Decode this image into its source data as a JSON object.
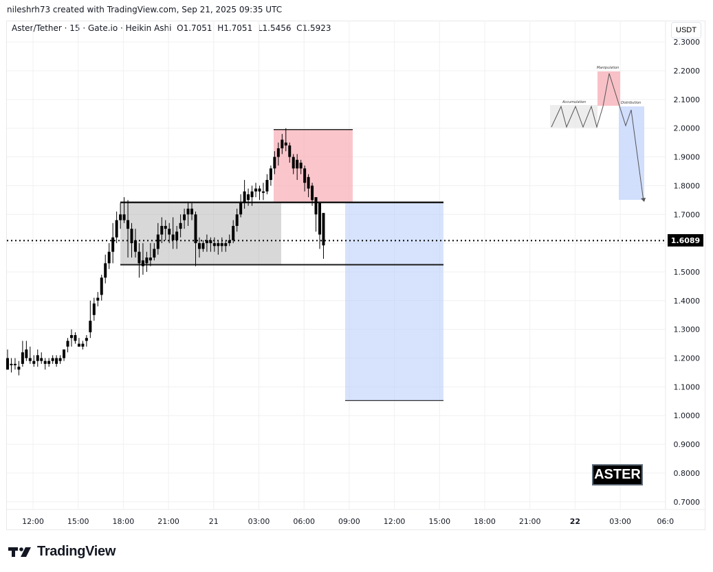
{
  "credit": "nileshrh73 created with TradingView.com, Sep 21, 2025 09:35 UTC",
  "legend": {
    "symbol": "Aster/Tether",
    "interval": "15",
    "exchange": "Gate.io",
    "chart_type": "Heikin Ashi",
    "open": "O1.7051",
    "high": "H1.7051",
    "low": "L1.5456",
    "close": "C1.5923",
    "text": "Aster/Tether · 15 · Gate.io · Heikin Ashi  O1.7051  H1.7051  L1.5456  C1.5923"
  },
  "currency_button": "USDT",
  "current_price_tag": "1.6089",
  "watermark_label": "ASTER",
  "logo_text": "TradingView",
  "inset_diagram": {
    "labels": [
      "Accumulation",
      "Manipulation",
      "Distribution"
    ]
  },
  "colors": {
    "candle": "#000000",
    "accumulation_box": "#c8c8c8",
    "manipulation_box": "#f7b6bd",
    "distribution_box": "#c9d8fb",
    "grid": "#f0f0f0"
  },
  "chart_data": {
    "type": "candlestick",
    "title": "Aster/Tether · 15 · Gate.io · Heikin Ashi",
    "xlabel": "",
    "ylabel": "USDT",
    "ylim": [
      0.68,
      2.31
    ],
    "price_ticks": [
      "2.3000",
      "2.2000",
      "2.1000",
      "2.0000",
      "1.9000",
      "1.8000",
      "1.7000",
      "1.6000",
      "1.5000",
      "1.4000",
      "1.3000",
      "1.2000",
      "1.1000",
      "1.0000",
      "0.9000",
      "0.8000",
      "0.7000"
    ],
    "time_ticks": [
      "12:00",
      "15:00",
      "18:00",
      "21:00",
      "21",
      "03:00",
      "06:00",
      "09:00",
      "12:00",
      "15:00",
      "18:00",
      "21:00",
      "22",
      "03:00",
      "06:0"
    ],
    "current_price": 1.6089,
    "last_ohlc": {
      "open": 1.7051,
      "high": 1.7051,
      "low": 1.5456,
      "close": 1.5923
    },
    "zones": [
      {
        "name": "Accumulation",
        "top": 1.7417,
        "bottom": 1.5249,
        "color": "#c8c8c8"
      },
      {
        "name": "Manipulation",
        "top": 1.9951,
        "bottom": 1.7417,
        "color": "#f7b6bd"
      },
      {
        "name": "Distribution",
        "top": 1.7417,
        "bottom": 1.0522,
        "color": "#c9d8fb"
      }
    ],
    "horizontal_lines": [
      1.7417,
      1.5249,
      1.0522
    ],
    "candles": [
      {
        "o": 1.2,
        "h": 1.23,
        "l": 1.16,
        "c": 1.16
      },
      {
        "o": 1.18,
        "h": 1.2,
        "l": 1.15,
        "c": 1.18
      },
      {
        "o": 1.18,
        "h": 1.2,
        "l": 1.16,
        "c": 1.18
      },
      {
        "o": 1.17,
        "h": 1.19,
        "l": 1.14,
        "c": 1.16
      },
      {
        "o": 1.18,
        "h": 1.26,
        "l": 1.17,
        "c": 1.22
      },
      {
        "o": 1.23,
        "h": 1.26,
        "l": 1.19,
        "c": 1.2
      },
      {
        "o": 1.2,
        "h": 1.24,
        "l": 1.18,
        "c": 1.19
      },
      {
        "o": 1.18,
        "h": 1.21,
        "l": 1.17,
        "c": 1.19
      },
      {
        "o": 1.19,
        "h": 1.23,
        "l": 1.17,
        "c": 1.21
      },
      {
        "o": 1.2,
        "h": 1.22,
        "l": 1.18,
        "c": 1.19
      },
      {
        "o": 1.19,
        "h": 1.2,
        "l": 1.16,
        "c": 1.18
      },
      {
        "o": 1.18,
        "h": 1.2,
        "l": 1.17,
        "c": 1.19
      },
      {
        "o": 1.19,
        "h": 1.21,
        "l": 1.18,
        "c": 1.2
      },
      {
        "o": 1.2,
        "h": 1.21,
        "l": 1.17,
        "c": 1.18
      },
      {
        "o": 1.19,
        "h": 1.21,
        "l": 1.18,
        "c": 1.2
      },
      {
        "o": 1.2,
        "h": 1.23,
        "l": 1.19,
        "c": 1.23
      },
      {
        "o": 1.24,
        "h": 1.27,
        "l": 1.22,
        "c": 1.26
      },
      {
        "o": 1.27,
        "h": 1.3,
        "l": 1.24,
        "c": 1.28
      },
      {
        "o": 1.28,
        "h": 1.29,
        "l": 1.25,
        "c": 1.26
      },
      {
        "o": 1.25,
        "h": 1.27,
        "l": 1.24,
        "c": 1.24
      },
      {
        "o": 1.24,
        "h": 1.26,
        "l": 1.23,
        "c": 1.25
      },
      {
        "o": 1.26,
        "h": 1.28,
        "l": 1.24,
        "c": 1.27
      },
      {
        "o": 1.29,
        "h": 1.4,
        "l": 1.27,
        "c": 1.33
      },
      {
        "o": 1.35,
        "h": 1.41,
        "l": 1.33,
        "c": 1.39
      },
      {
        "o": 1.4,
        "h": 1.43,
        "l": 1.38,
        "c": 1.41
      },
      {
        "o": 1.42,
        "h": 1.49,
        "l": 1.4,
        "c": 1.48
      },
      {
        "o": 1.48,
        "h": 1.56,
        "l": 1.46,
        "c": 1.53
      },
      {
        "o": 1.53,
        "h": 1.6,
        "l": 1.51,
        "c": 1.57
      },
      {
        "o": 1.57,
        "h": 1.67,
        "l": 1.53,
        "c": 1.62
      },
      {
        "o": 1.62,
        "h": 1.71,
        "l": 1.6,
        "c": 1.68
      },
      {
        "o": 1.68,
        "h": 1.74,
        "l": 1.65,
        "c": 1.7
      },
      {
        "o": 1.7,
        "h": 1.76,
        "l": 1.67,
        "c": 1.68
      },
      {
        "o": 1.68,
        "h": 1.75,
        "l": 1.55,
        "c": 1.65
      },
      {
        "o": 1.65,
        "h": 1.67,
        "l": 1.55,
        "c": 1.6
      },
      {
        "o": 1.61,
        "h": 1.65,
        "l": 1.55,
        "c": 1.57
      },
      {
        "o": 1.57,
        "h": 1.6,
        "l": 1.48,
        "c": 1.53
      },
      {
        "o": 1.54,
        "h": 1.6,
        "l": 1.49,
        "c": 1.52
      },
      {
        "o": 1.53,
        "h": 1.57,
        "l": 1.5,
        "c": 1.55
      },
      {
        "o": 1.55,
        "h": 1.6,
        "l": 1.52,
        "c": 1.54
      },
      {
        "o": 1.55,
        "h": 1.6,
        "l": 1.54,
        "c": 1.58
      },
      {
        "o": 1.58,
        "h": 1.67,
        "l": 1.56,
        "c": 1.63
      },
      {
        "o": 1.63,
        "h": 1.69,
        "l": 1.6,
        "c": 1.66
      },
      {
        "o": 1.66,
        "h": 1.68,
        "l": 1.61,
        "c": 1.65
      },
      {
        "o": 1.65,
        "h": 1.67,
        "l": 1.6,
        "c": 1.63
      },
      {
        "o": 1.63,
        "h": 1.69,
        "l": 1.58,
        "c": 1.61
      },
      {
        "o": 1.61,
        "h": 1.66,
        "l": 1.58,
        "c": 1.64
      },
      {
        "o": 1.65,
        "h": 1.7,
        "l": 1.62,
        "c": 1.67
      },
      {
        "o": 1.68,
        "h": 1.72,
        "l": 1.65,
        "c": 1.7
      },
      {
        "o": 1.7,
        "h": 1.74,
        "l": 1.66,
        "c": 1.72
      },
      {
        "o": 1.72,
        "h": 1.74,
        "l": 1.68,
        "c": 1.7
      },
      {
        "o": 1.7,
        "h": 1.71,
        "l": 1.52,
        "c": 1.6
      },
      {
        "o": 1.6,
        "h": 1.62,
        "l": 1.55,
        "c": 1.58
      },
      {
        "o": 1.58,
        "h": 1.61,
        "l": 1.57,
        "c": 1.6
      },
      {
        "o": 1.6,
        "h": 1.63,
        "l": 1.57,
        "c": 1.61
      },
      {
        "o": 1.61,
        "h": 1.62,
        "l": 1.57,
        "c": 1.6
      },
      {
        "o": 1.6,
        "h": 1.62,
        "l": 1.57,
        "c": 1.59
      },
      {
        "o": 1.59,
        "h": 1.61,
        "l": 1.56,
        "c": 1.6
      },
      {
        "o": 1.6,
        "h": 1.62,
        "l": 1.57,
        "c": 1.59
      },
      {
        "o": 1.59,
        "h": 1.61,
        "l": 1.57,
        "c": 1.6
      },
      {
        "o": 1.6,
        "h": 1.63,
        "l": 1.59,
        "c": 1.61
      },
      {
        "o": 1.61,
        "h": 1.68,
        "l": 1.6,
        "c": 1.66
      },
      {
        "o": 1.66,
        "h": 1.72,
        "l": 1.64,
        "c": 1.7
      },
      {
        "o": 1.7,
        "h": 1.77,
        "l": 1.69,
        "c": 1.74
      },
      {
        "o": 1.74,
        "h": 1.82,
        "l": 1.72,
        "c": 1.78
      },
      {
        "o": 1.75,
        "h": 1.79,
        "l": 1.73,
        "c": 1.77
      },
      {
        "o": 1.76,
        "h": 1.8,
        "l": 1.73,
        "c": 1.78
      },
      {
        "o": 1.78,
        "h": 1.81,
        "l": 1.76,
        "c": 1.79
      },
      {
        "o": 1.79,
        "h": 1.8,
        "l": 1.75,
        "c": 1.78
      },
      {
        "o": 1.78,
        "h": 1.81,
        "l": 1.75,
        "c": 1.78
      },
      {
        "o": 1.78,
        "h": 1.84,
        "l": 1.77,
        "c": 1.82
      },
      {
        "o": 1.82,
        "h": 1.87,
        "l": 1.8,
        "c": 1.86
      },
      {
        "o": 1.86,
        "h": 1.92,
        "l": 1.84,
        "c": 1.9
      },
      {
        "o": 1.9,
        "h": 1.95,
        "l": 1.87,
        "c": 1.93
      },
      {
        "o": 1.93,
        "h": 1.98,
        "l": 1.91,
        "c": 1.96
      },
      {
        "o": 1.94,
        "h": 2.0,
        "l": 1.92,
        "c": 1.95
      },
      {
        "o": 1.94,
        "h": 1.95,
        "l": 1.88,
        "c": 1.9
      },
      {
        "o": 1.9,
        "h": 1.91,
        "l": 1.84,
        "c": 1.86
      },
      {
        "o": 1.89,
        "h": 1.91,
        "l": 1.82,
        "c": 1.86
      },
      {
        "o": 1.88,
        "h": 1.89,
        "l": 1.84,
        "c": 1.86
      },
      {
        "o": 1.86,
        "h": 1.87,
        "l": 1.78,
        "c": 1.81
      },
      {
        "o": 1.83,
        "h": 1.84,
        "l": 1.76,
        "c": 1.79
      },
      {
        "o": 1.8,
        "h": 1.81,
        "l": 1.73,
        "c": 1.75
      },
      {
        "o": 1.76,
        "h": 1.76,
        "l": 1.64,
        "c": 1.7
      },
      {
        "o": 1.74,
        "h": 1.74,
        "l": 1.58,
        "c": 1.63
      },
      {
        "o": 1.7051,
        "h": 1.7051,
        "l": 1.5456,
        "c": 1.5923
      }
    ]
  }
}
